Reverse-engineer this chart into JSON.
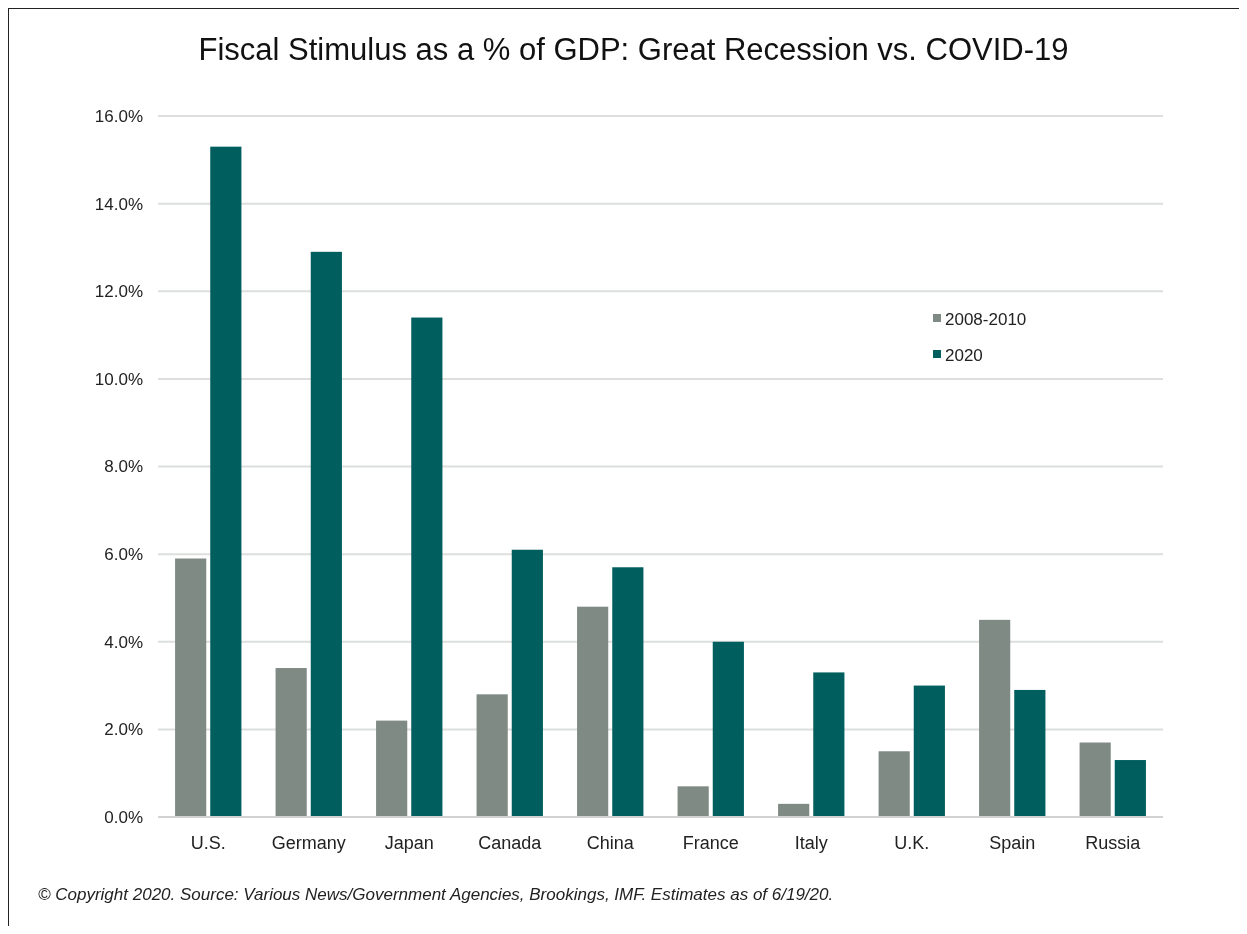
{
  "chart_data": {
    "type": "bar",
    "title": "Fiscal Stimulus as a % of GDP: Great Recession vs. COVID-19",
    "categories": [
      "U.S.",
      "Germany",
      "Japan",
      "Canada",
      "China",
      "France",
      "Italy",
      "U.K.",
      "Spain",
      "Russia"
    ],
    "series": [
      {
        "name": "2008-2010",
        "color": "#7f8a84",
        "values": [
          5.9,
          3.4,
          2.2,
          2.8,
          4.8,
          0.7,
          0.3,
          1.5,
          4.5,
          1.7
        ]
      },
      {
        "name": "2020",
        "color": "#005e5e",
        "values": [
          15.3,
          12.9,
          11.4,
          6.1,
          5.7,
          4.0,
          3.3,
          3.0,
          2.9,
          1.3
        ]
      }
    ],
    "ylim": [
      0,
      16
    ],
    "yticks": [
      {
        "value": 0,
        "label": "0.0%"
      },
      {
        "value": 2,
        "label": "2.0%"
      },
      {
        "value": 4,
        "label": "4.0%"
      },
      {
        "value": 6,
        "label": "6.0%"
      },
      {
        "value": 8,
        "label": "8.0%"
      },
      {
        "value": 10,
        "label": "10.0%"
      },
      {
        "value": 12,
        "label": "12.0%"
      },
      {
        "value": 14,
        "label": "14.0%"
      },
      {
        "value": 16,
        "label": "16.0%"
      }
    ],
    "grid": "y",
    "legend": "top right",
    "annotations": [
      "© Copyright 2020. Source: Various News/Government Agencies, Brookings, IMF. Estimates as of 6/19/20."
    ]
  }
}
